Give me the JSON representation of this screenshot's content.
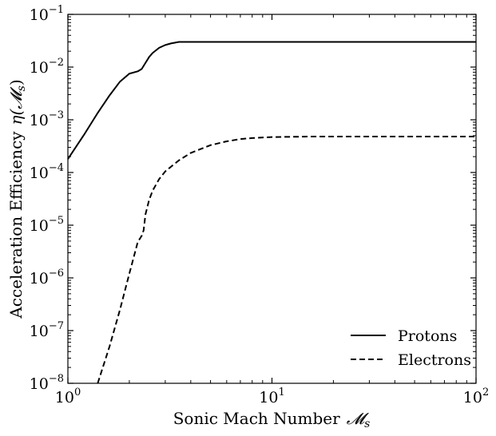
{
  "chart_data": {
    "type": "line",
    "xscale": "log",
    "yscale": "log",
    "xlim": [
      1,
      100
    ],
    "ylim": [
      1e-08,
      0.1
    ],
    "xlabel": "Sonic Mach Number",
    "xlabel_symbol": "𝓜",
    "xlabel_sub": "s",
    "ylabel": "Acceleration Efficiency",
    "ylabel_symbol": "η(𝓜",
    "ylabel_sub": "s",
    "ylabel_close": ")",
    "x_ticks": [
      {
        "base": "10",
        "exp": "0",
        "value": 1
      },
      {
        "base": "10",
        "exp": "1",
        "value": 10
      },
      {
        "base": "10",
        "exp": "2",
        "value": 100
      }
    ],
    "y_ticks": [
      {
        "base": "10",
        "exp": "−8",
        "value": 1e-08
      },
      {
        "base": "10",
        "exp": "−7",
        "value": 1e-07
      },
      {
        "base": "10",
        "exp": "−6",
        "value": 1e-06
      },
      {
        "base": "10",
        "exp": "−5",
        "value": 1e-05
      },
      {
        "base": "10",
        "exp": "−4",
        "value": 0.0001
      },
      {
        "base": "10",
        "exp": "−3",
        "value": 0.001
      },
      {
        "base": "10",
        "exp": "−2",
        "value": 0.01
      },
      {
        "base": "10",
        "exp": "−1",
        "value": 0.1
      }
    ],
    "grid": false,
    "legend": "lower-right",
    "series": [
      {
        "name": "Protons",
        "style": "solid",
        "color": "#000000",
        "x": [
          1.0,
          1.2,
          1.4,
          1.6,
          1.8,
          2.0,
          2.2,
          2.3,
          2.4,
          2.5,
          2.6,
          2.8,
          3.0,
          3.2,
          3.5,
          4,
          5,
          10,
          20,
          50,
          100
        ],
        "y": [
          0.00018,
          0.00052,
          0.00135,
          0.0029,
          0.0053,
          0.0075,
          0.0083,
          0.0092,
          0.012,
          0.0155,
          0.0185,
          0.0232,
          0.0262,
          0.0281,
          0.03,
          0.03,
          0.03,
          0.03,
          0.03,
          0.03,
          0.03
        ]
      },
      {
        "name": "Electrons",
        "style": "dashed",
        "color": "#000000",
        "x": [
          1.4,
          1.6,
          1.8,
          2.0,
          2.2,
          2.3,
          2.35,
          2.4,
          2.5,
          2.6,
          2.8,
          3.0,
          3.5,
          4,
          5,
          6,
          7,
          8,
          10,
          15,
          20,
          50,
          100
        ],
        "y": [
          1e-08,
          5e-08,
          2.5e-07,
          1.2e-06,
          4.8e-06,
          6.3e-06,
          8e-06,
          1.6e-05,
          3e-05,
          4.5e-05,
          7.5e-05,
          0.000105,
          0.00017,
          0.000235,
          0.00033,
          0.00039,
          0.00043,
          0.00045,
          0.00047,
          0.00048,
          0.00048,
          0.00048,
          0.00048
        ]
      }
    ]
  }
}
